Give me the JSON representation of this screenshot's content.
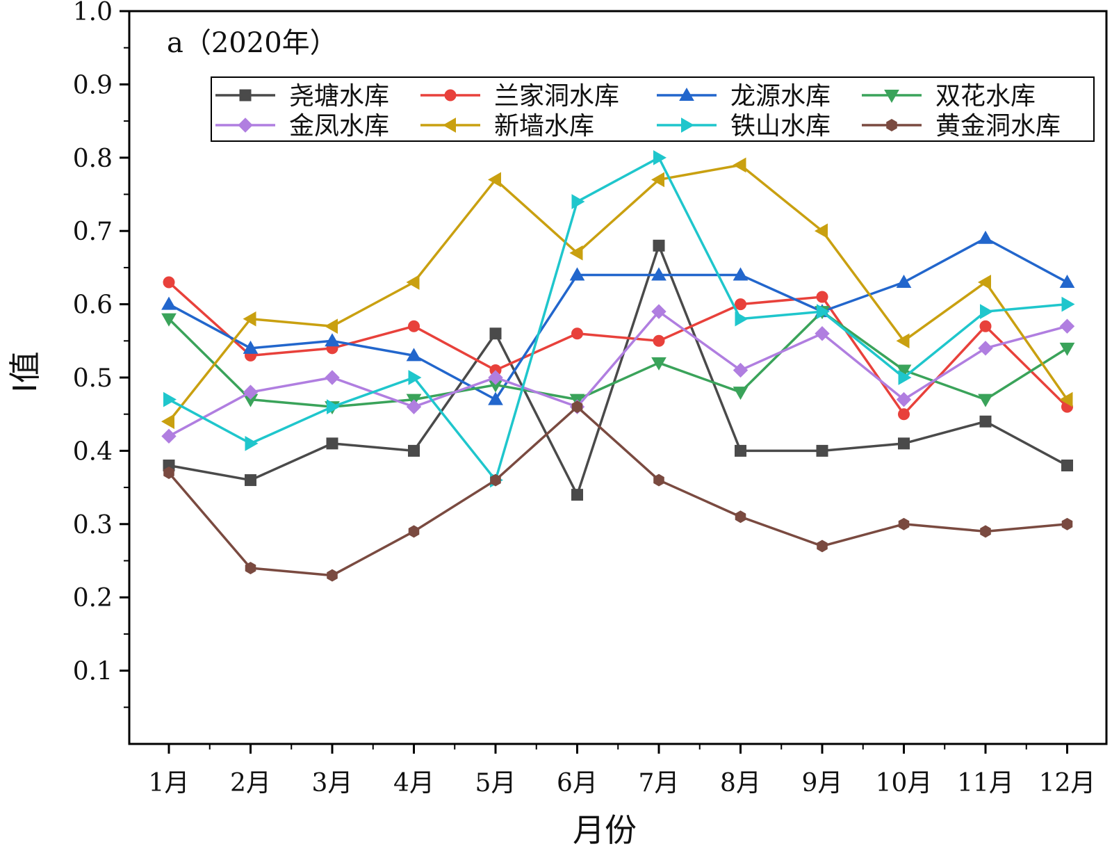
{
  "chart_data": {
    "type": "line",
    "title": "",
    "panel_label": "a（2020年）",
    "xlabel": "月份",
    "ylabel": "I值",
    "ylim": [
      0,
      1.0
    ],
    "y_ticks": [
      "0.1",
      "0.2",
      "0.3",
      "0.4",
      "0.5",
      "0.6",
      "0.7",
      "0.8",
      "0.9",
      "1.0"
    ],
    "categories": [
      "1月",
      "2月",
      "3月",
      "4月",
      "5月",
      "6月",
      "7月",
      "8月",
      "9月",
      "10月",
      "11月",
      "12月"
    ],
    "legend_position": "top",
    "series": [
      {
        "name": "尧塘水库",
        "color": "#4a4a4a",
        "marker": "square",
        "values": [
          0.38,
          0.36,
          0.41,
          0.4,
          0.56,
          0.34,
          0.68,
          0.4,
          0.4,
          0.41,
          0.44,
          0.38
        ]
      },
      {
        "name": "兰家洞水库",
        "color": "#e8413b",
        "marker": "circle",
        "values": [
          0.63,
          0.53,
          0.54,
          0.57,
          0.51,
          0.56,
          0.55,
          0.6,
          0.61,
          0.45,
          0.57,
          0.46
        ]
      },
      {
        "name": "龙源水库",
        "color": "#2266cc",
        "marker": "triangle-up",
        "values": [
          0.6,
          0.54,
          0.55,
          0.53,
          0.47,
          0.64,
          0.64,
          0.64,
          0.59,
          0.63,
          0.69,
          0.63
        ]
      },
      {
        "name": "双花水库",
        "color": "#3aa35a",
        "marker": "triangle-down",
        "values": [
          0.58,
          0.47,
          0.46,
          0.47,
          0.49,
          0.47,
          0.52,
          0.48,
          0.59,
          0.51,
          0.47,
          0.54
        ]
      },
      {
        "name": "金凤水库",
        "color": "#b07ee0",
        "marker": "diamond",
        "values": [
          0.42,
          0.48,
          0.5,
          0.46,
          0.5,
          0.46,
          0.59,
          0.51,
          0.56,
          0.47,
          0.54,
          0.57
        ]
      },
      {
        "name": "新墙水库",
        "color": "#c9a010",
        "marker": "triangle-left",
        "values": [
          0.44,
          0.58,
          0.57,
          0.63,
          0.77,
          0.67,
          0.77,
          0.79,
          0.7,
          0.55,
          0.63,
          0.47
        ]
      },
      {
        "name": "铁山水库",
        "color": "#1fc6cc",
        "marker": "triangle-right",
        "values": [
          0.47,
          0.41,
          0.46,
          0.5,
          0.36,
          0.74,
          0.8,
          0.58,
          0.59,
          0.5,
          0.59,
          0.6
        ]
      },
      {
        "name": "黄金洞水库",
        "color": "#7a4a40",
        "marker": "hexagon",
        "values": [
          0.37,
          0.24,
          0.23,
          0.29,
          0.36,
          0.46,
          0.36,
          0.31,
          0.27,
          0.3,
          0.29,
          0.3
        ]
      }
    ]
  }
}
